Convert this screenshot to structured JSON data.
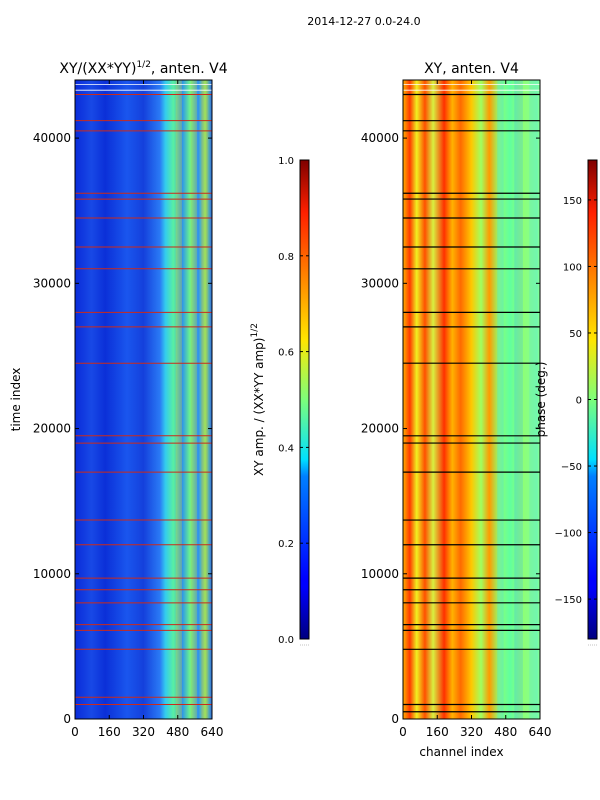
{
  "suptitle": "2014-12-27 0.0-24.0",
  "chart_data": [
    {
      "type": "heatmap",
      "id": "amp",
      "title_main": "XY/(XX*YY)",
      "title_sup": "1/2",
      "title_tail": ", anten. V4",
      "xlabel": "",
      "ylabel": "time index",
      "xlim": [
        0,
        640
      ],
      "ylim": [
        0,
        44000
      ],
      "xticks": [
        0,
        160,
        320,
        480,
        640
      ],
      "yticks": [
        0,
        10000,
        20000,
        30000,
        40000
      ],
      "colorbar": {
        "label_main": "XY amp. / (XX*YY amp)",
        "label_sup": "1/2",
        "range": [
          0.0,
          1.0
        ],
        "ticks": [
          "0.0",
          "0.2",
          "0.4",
          "0.6",
          "0.8",
          "1.0"
        ],
        "tick_values": [
          0.0,
          0.2,
          0.4,
          0.6,
          0.8,
          1.0
        ]
      },
      "flag_rows": [
        1000,
        1500,
        4800,
        6100,
        6500,
        8000,
        8900,
        9700,
        12000,
        13700,
        17000,
        19000,
        19500,
        24500,
        27000,
        28000,
        31000,
        32500,
        34500,
        35800,
        36200,
        40500,
        41200,
        43000
      ]
    },
    {
      "type": "heatmap",
      "id": "phase",
      "title_main": "XY, anten. V4",
      "xlabel": "channel index",
      "ylabel": "",
      "xlim": [
        0,
        640
      ],
      "ylim": [
        0,
        44000
      ],
      "xticks": [
        0,
        160,
        320,
        480,
        640
      ],
      "yticks": [
        0,
        10000,
        20000,
        30000,
        40000
      ],
      "colorbar": {
        "label_main": "phase (deg.)",
        "range": [
          -180,
          180
        ],
        "ticks": [
          "−150",
          "−100",
          "−50",
          "0",
          "50",
          "100",
          "150"
        ],
        "tick_values": [
          -150,
          -100,
          -50,
          0,
          50,
          100,
          150
        ]
      },
      "flag_rows": [
        500,
        1000,
        4800,
        6100,
        6500,
        8000,
        8900,
        9700,
        12000,
        13700,
        17000,
        19000,
        19500,
        24500,
        27000,
        28000,
        31000,
        32500,
        34500,
        35800,
        36200,
        40500,
        41200,
        43000
      ]
    }
  ]
}
